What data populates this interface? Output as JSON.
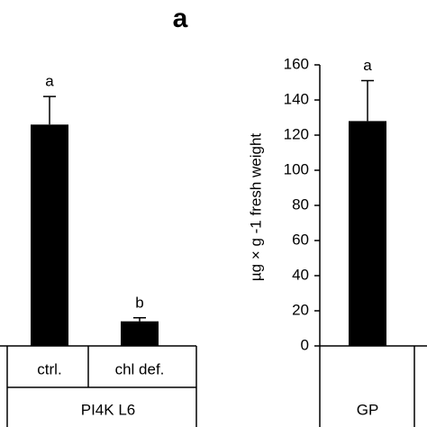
{
  "chart_data": [
    {
      "type": "bar",
      "title": "a",
      "categories": [
        "ctrl.",
        "chl def."
      ],
      "group": "PI4K L6",
      "values": [
        126,
        14
      ],
      "errors": [
        16,
        2
      ],
      "annotations": [
        "a",
        "b"
      ],
      "color": "#000000",
      "ylim": [
        0,
        160
      ]
    },
    {
      "type": "bar",
      "y_label": "µg × g -1 fresh weight",
      "categories": [
        "GP"
      ],
      "values": [
        128
      ],
      "errors": [
        23
      ],
      "annotations": [
        "a"
      ],
      "color": "#000000",
      "ylim": [
        0,
        160
      ],
      "yticks": [
        0,
        20,
        40,
        60,
        80,
        100,
        120,
        140,
        160
      ]
    }
  ]
}
